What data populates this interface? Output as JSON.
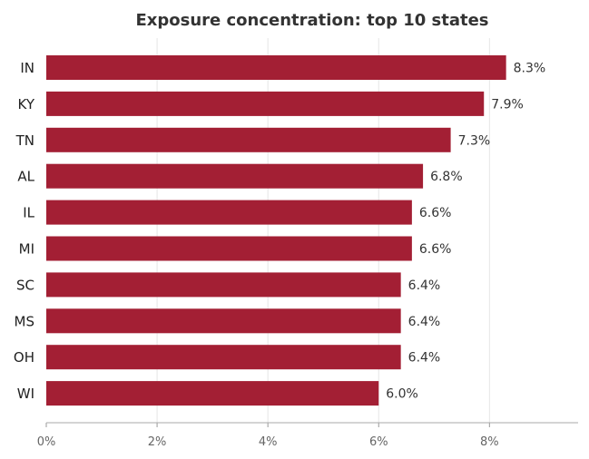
{
  "chart_data": {
    "type": "bar",
    "orientation": "horizontal",
    "title": "Exposure concentration: top 10 states",
    "xlabel": "",
    "ylabel": "",
    "categories": [
      "IN",
      "KY",
      "TN",
      "AL",
      "IL",
      "MI",
      "SC",
      "MS",
      "OH",
      "WI"
    ],
    "values": [
      8.3,
      7.9,
      7.3,
      6.8,
      6.6,
      6.6,
      6.4,
      6.4,
      6.4,
      6.0
    ],
    "data_labels": [
      "8.3%",
      "7.9%",
      "7.3%",
      "6.8%",
      "6.6%",
      "6.6%",
      "6.4%",
      "6.4%",
      "6.4%",
      "6.0%"
    ],
    "xlim": [
      0,
      9.6
    ],
    "xticks": [
      0,
      2,
      4,
      6,
      8
    ],
    "xtick_labels": [
      "0%",
      "2%",
      "4%",
      "6%",
      "8%"
    ],
    "grid": "vertical",
    "bar_color": "#a31f34"
  }
}
